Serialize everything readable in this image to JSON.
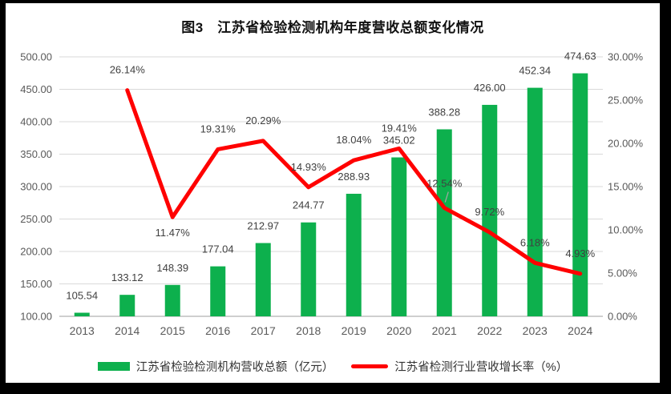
{
  "title": "图3　江苏省检验检测机构年度营收总额变化情况",
  "chart_data": {
    "type": "combo",
    "title": "图3　江苏省检验检测机构年度营收总额变化情况",
    "categories": [
      "2013",
      "2014",
      "2015",
      "2016",
      "2017",
      "2018",
      "2019",
      "2020",
      "2021",
      "2022",
      "2023",
      "2024"
    ],
    "series": [
      {
        "name": "江苏省检验检测机构营收总额（亿元）",
        "type": "bar",
        "axis": "left",
        "color": "#0DB04D",
        "values": [
          105.54,
          133.12,
          148.39,
          177.04,
          212.97,
          244.77,
          288.93,
          345.02,
          388.28,
          426.0,
          452.34,
          474.63
        ],
        "labels": [
          "105.54",
          "133.12",
          "148.39",
          "177.04",
          "212.97",
          "244.77",
          "288.93",
          "345.02",
          "388.28",
          "426.00",
          "452.34",
          "474.63"
        ]
      },
      {
        "name": "江苏省检测行业营收增长率（%）",
        "type": "line",
        "axis": "right",
        "color": "#FF0000",
        "values": [
          null,
          26.14,
          11.47,
          19.31,
          20.29,
          14.93,
          18.04,
          19.41,
          12.54,
          9.72,
          6.18,
          4.93
        ],
        "labels": [
          null,
          "26.14%",
          "11.47%",
          "19.31%",
          "20.29%",
          "14.93%",
          "18.04%",
          "19.41%",
          "12.54%",
          "9.72%",
          "6.18%",
          "4.93%"
        ],
        "label_positions": [
          null,
          "above",
          "below",
          "above",
          "above",
          "above",
          "above",
          "above",
          "above-leader",
          "above",
          "above",
          "above"
        ]
      }
    ],
    "left_axis": {
      "min": 100,
      "max": 500,
      "step": 50,
      "ticks": [
        "100.00",
        "150.00",
        "200.00",
        "250.00",
        "300.00",
        "350.00",
        "400.00",
        "450.00",
        "500.00"
      ]
    },
    "right_axis": {
      "min": 0,
      "max": 30,
      "step": 5,
      "ticks": [
        "0.00%",
        "5.00%",
        "10.00%",
        "15.00%",
        "20.00%",
        "25.00%",
        "30.00%"
      ]
    },
    "grid": true,
    "legend_position": "bottom",
    "style": {
      "grid_color": "#D9D9D9",
      "axis_line_color": "#BFBFBF",
      "tick_text_color": "#595959",
      "data_label_color": "#404040",
      "leader_line_color": "#A6A6A6",
      "panel_background": "#FFFFFF",
      "outer_background": "#000000"
    }
  }
}
